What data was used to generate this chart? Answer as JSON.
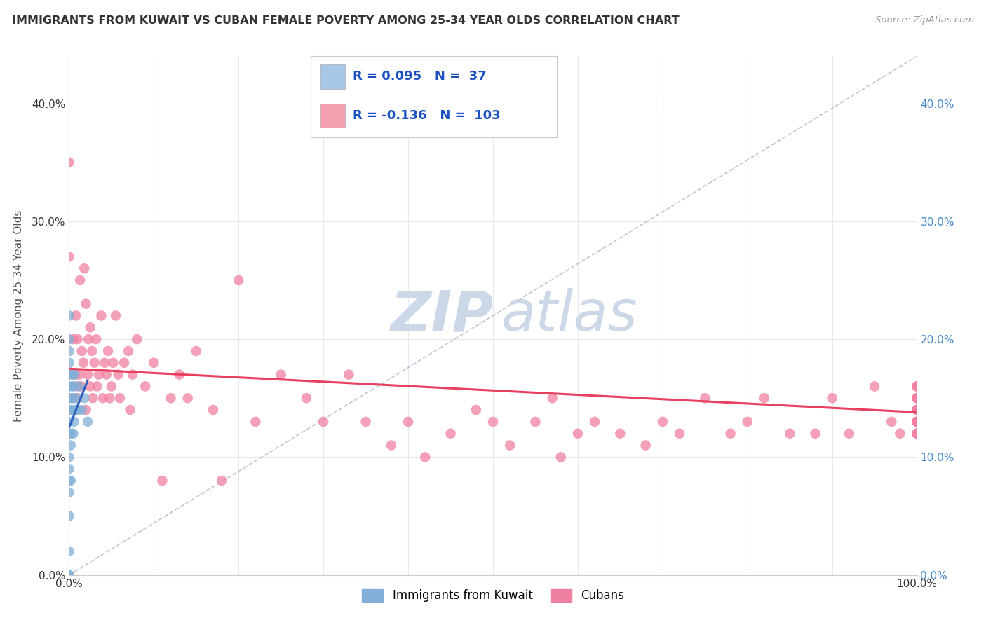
{
  "title": "IMMIGRANTS FROM KUWAIT VS CUBAN FEMALE POVERTY AMONG 25-34 YEAR OLDS CORRELATION CHART",
  "source": "Source: ZipAtlas.com",
  "ylabel": "Female Poverty Among 25-34 Year Olds",
  "xlim": [
    0,
    1.0
  ],
  "ylim": [
    0,
    0.44
  ],
  "xticks": [
    0.0,
    0.1,
    0.2,
    0.3,
    0.4,
    0.5,
    0.6,
    0.7,
    0.8,
    0.9,
    1.0
  ],
  "yticks": [
    0.0,
    0.1,
    0.2,
    0.3,
    0.4
  ],
  "legend_entries": [
    {
      "label": "Immigrants from Kuwait",
      "color": "#a8c8e8",
      "marker_color": "#82b0d8",
      "R": "0.095",
      "N": "37"
    },
    {
      "label": "Cubans",
      "color": "#f4a0b0",
      "marker_color": "#f080a0",
      "R": "-0.136",
      "N": "103"
    }
  ],
  "blue_scatter_x": [
    0.0,
    0.0,
    0.0,
    0.0,
    0.0,
    0.0,
    0.0,
    0.0,
    0.0,
    0.0,
    0.0,
    0.0,
    0.0,
    0.0,
    0.0,
    0.0,
    0.0,
    0.0,
    0.002,
    0.002,
    0.003,
    0.003,
    0.003,
    0.004,
    0.004,
    0.004,
    0.005,
    0.005,
    0.006,
    0.006,
    0.007,
    0.008,
    0.01,
    0.012,
    0.015,
    0.018,
    0.022
  ],
  "blue_scatter_y": [
    0.0,
    0.02,
    0.05,
    0.07,
    0.08,
    0.09,
    0.1,
    0.12,
    0.13,
    0.14,
    0.15,
    0.16,
    0.17,
    0.18,
    0.19,
    0.2,
    0.22,
    0.0,
    0.08,
    0.11,
    0.12,
    0.14,
    0.15,
    0.15,
    0.16,
    0.17,
    0.12,
    0.16,
    0.13,
    0.17,
    0.14,
    0.15,
    0.14,
    0.16,
    0.14,
    0.15,
    0.13
  ],
  "pink_scatter_x": [
    0.0,
    0.0,
    0.0,
    0.005,
    0.007,
    0.008,
    0.009,
    0.01,
    0.01,
    0.012,
    0.013,
    0.015,
    0.015,
    0.017,
    0.018,
    0.02,
    0.02,
    0.022,
    0.023,
    0.025,
    0.025,
    0.027,
    0.028,
    0.03,
    0.032,
    0.033,
    0.035,
    0.038,
    0.04,
    0.042,
    0.044,
    0.046,
    0.048,
    0.05,
    0.052,
    0.055,
    0.058,
    0.06,
    0.065,
    0.07,
    0.072,
    0.075,
    0.08,
    0.09,
    0.1,
    0.11,
    0.12,
    0.13,
    0.14,
    0.15,
    0.17,
    0.18,
    0.2,
    0.22,
    0.25,
    0.28,
    0.3,
    0.33,
    0.35,
    0.38,
    0.4,
    0.42,
    0.45,
    0.48,
    0.5,
    0.52,
    0.55,
    0.57,
    0.58,
    0.6,
    0.62,
    0.65,
    0.68,
    0.7,
    0.72,
    0.75,
    0.78,
    0.8,
    0.82,
    0.85,
    0.88,
    0.9,
    0.92,
    0.95,
    0.97,
    0.98,
    1.0,
    1.0,
    1.0,
    1.0,
    1.0,
    1.0,
    1.0,
    1.0,
    1.0,
    1.0,
    1.0,
    1.0,
    1.0,
    1.0,
    1.0,
    1.0,
    1.0
  ],
  "pink_scatter_y": [
    0.17,
    0.27,
    0.35,
    0.2,
    0.17,
    0.22,
    0.16,
    0.15,
    0.2,
    0.17,
    0.25,
    0.16,
    0.19,
    0.18,
    0.26,
    0.14,
    0.23,
    0.17,
    0.2,
    0.16,
    0.21,
    0.19,
    0.15,
    0.18,
    0.2,
    0.16,
    0.17,
    0.22,
    0.15,
    0.18,
    0.17,
    0.19,
    0.15,
    0.16,
    0.18,
    0.22,
    0.17,
    0.15,
    0.18,
    0.19,
    0.14,
    0.17,
    0.2,
    0.16,
    0.18,
    0.08,
    0.15,
    0.17,
    0.15,
    0.19,
    0.14,
    0.08,
    0.25,
    0.13,
    0.17,
    0.15,
    0.13,
    0.17,
    0.13,
    0.11,
    0.13,
    0.1,
    0.12,
    0.14,
    0.13,
    0.11,
    0.13,
    0.15,
    0.1,
    0.12,
    0.13,
    0.12,
    0.11,
    0.13,
    0.12,
    0.15,
    0.12,
    0.13,
    0.15,
    0.12,
    0.12,
    0.15,
    0.12,
    0.16,
    0.13,
    0.12,
    0.14,
    0.12,
    0.16,
    0.13,
    0.14,
    0.12,
    0.15,
    0.13,
    0.16,
    0.14,
    0.12,
    0.15,
    0.13,
    0.16,
    0.14,
    0.13,
    0.15
  ],
  "blue_trend_x": [
    0.0,
    0.022
  ],
  "blue_trend_y": [
    0.125,
    0.165
  ],
  "pink_trend_x": [
    0.0,
    1.0
  ],
  "pink_trend_y": [
    0.175,
    0.138
  ],
  "diag_color": "#b0b8c8",
  "scatter_color_blue": "#82b0d8",
  "scatter_color_pink": "#f080a0",
  "trend_color_blue": "#3060c0",
  "trend_color_pink": "#e84060",
  "diag_line_x": [
    0.0,
    1.0
  ],
  "diag_line_y": [
    0.0,
    0.44
  ],
  "background_color": "#ffffff",
  "watermark_color": "#ccd8e8",
  "grid_color": "#e8e8f0"
}
